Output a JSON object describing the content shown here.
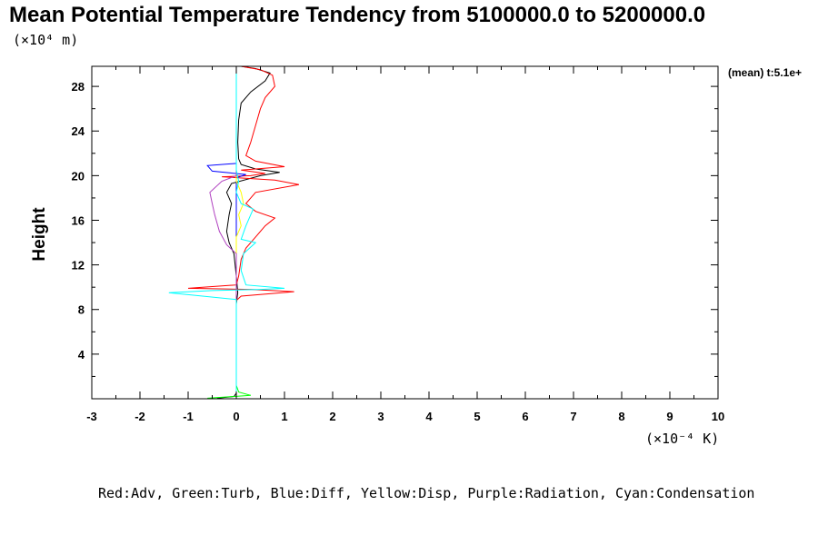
{
  "chart_data": {
    "type": "line",
    "title": "Mean Potential Temperature Tendency from 5100000.0 to 5200000.0",
    "y_unit": "(×10⁴ m)",
    "x_unit": "(×10⁻⁴ K)",
    "ylabel": "Height",
    "annotation": "(mean) t:5.1e+",
    "legend_text": "Red:Adv, Green:Turb, Blue:Diff, Yellow:Disp, Purple:Radiation, Cyan:Condensation",
    "xlim": [
      -3,
      10
    ],
    "ylim": [
      0,
      29.8
    ],
    "x_ticks": [
      -3,
      -2,
      -1,
      0,
      1,
      2,
      3,
      4,
      5,
      6,
      7,
      8,
      9,
      10
    ],
    "x_tick_labels": [
      "-3",
      "-2",
      "-1",
      "0",
      "1",
      "2",
      "3",
      "4",
      "5",
      "6",
      "7",
      "8",
      "9",
      "10"
    ],
    "y_ticks": [
      4,
      8,
      12,
      16,
      20,
      24,
      28
    ],
    "y_tick_labels": [
      "4",
      "8",
      "12",
      "16",
      "20",
      "24",
      "28"
    ],
    "series": [
      {
        "color": "#000000",
        "points": [
          [
            -0.4,
            0.05
          ],
          [
            -0.05,
            0.2
          ],
          [
            0.0,
            0.5
          ],
          [
            0.0,
            8.5
          ],
          [
            0.03,
            9.5
          ],
          [
            0.02,
            10.0
          ],
          [
            0.0,
            11.0
          ],
          [
            -0.05,
            13.0
          ],
          [
            -0.15,
            14.0
          ],
          [
            -0.2,
            15.0
          ],
          [
            -0.15,
            16.5
          ],
          [
            -0.1,
            17.5
          ],
          [
            -0.2,
            18.5
          ],
          [
            -0.1,
            19.3
          ],
          [
            0.5,
            20.0
          ],
          [
            0.9,
            20.3
          ],
          [
            0.4,
            20.6
          ],
          [
            0.1,
            21.0
          ],
          [
            0.05,
            21.5
          ],
          [
            0.03,
            23.0
          ],
          [
            0.05,
            25.0
          ],
          [
            0.1,
            26.5
          ],
          [
            0.3,
            27.5
          ],
          [
            0.6,
            28.5
          ],
          [
            0.7,
            29.2
          ],
          [
            0.4,
            29.6
          ],
          [
            0.1,
            29.8
          ]
        ]
      },
      {
        "color": "#ff0000",
        "points": [
          [
            0.0,
            0.5
          ],
          [
            0.0,
            8.8
          ],
          [
            0.1,
            9.2
          ],
          [
            1.2,
            9.6
          ],
          [
            0.3,
            9.8
          ],
          [
            -1.0,
            9.9
          ],
          [
            0.0,
            10.2
          ],
          [
            0.05,
            11.0
          ],
          [
            0.1,
            12.5
          ],
          [
            0.2,
            13.5
          ],
          [
            0.4,
            14.5
          ],
          [
            0.6,
            15.5
          ],
          [
            0.8,
            16.2
          ],
          [
            0.4,
            16.8
          ],
          [
            0.2,
            17.5
          ],
          [
            0.4,
            18.5
          ],
          [
            1.3,
            19.2
          ],
          [
            0.8,
            19.6
          ],
          [
            -0.3,
            19.9
          ],
          [
            0.3,
            20.0
          ],
          [
            0.6,
            20.2
          ],
          [
            0.1,
            20.5
          ],
          [
            1.0,
            20.8
          ],
          [
            0.4,
            21.3
          ],
          [
            0.2,
            21.8
          ],
          [
            0.3,
            23.0
          ],
          [
            0.4,
            24.5
          ],
          [
            0.5,
            26.0
          ],
          [
            0.6,
            27.0
          ],
          [
            0.8,
            28.0
          ],
          [
            0.75,
            29.0
          ],
          [
            0.5,
            29.5
          ],
          [
            0.1,
            29.8
          ]
        ]
      },
      {
        "color": "#00ff00",
        "points": [
          [
            -0.6,
            0.05
          ],
          [
            0.3,
            0.3
          ],
          [
            0.05,
            0.6
          ],
          [
            0.0,
            1.2
          ],
          [
            0.0,
            29.8
          ]
        ]
      },
      {
        "color": "#0000ff",
        "points": [
          [
            0.0,
            0.5
          ],
          [
            0.0,
            19.8
          ],
          [
            0.2,
            20.1
          ],
          [
            -0.5,
            20.4
          ],
          [
            -0.6,
            20.9
          ],
          [
            0.0,
            21.1
          ],
          [
            0.0,
            29.8
          ]
        ]
      },
      {
        "color": "#ffff00",
        "points": [
          [
            0.0,
            0.5
          ],
          [
            0.0,
            14.5
          ],
          [
            0.1,
            15.5
          ],
          [
            0.05,
            16.5
          ],
          [
            0.15,
            17.5
          ],
          [
            0.1,
            18.5
          ],
          [
            0.0,
            19.5
          ],
          [
            0.0,
            29.8
          ]
        ]
      },
      {
        "color": "#b040c0",
        "points": [
          [
            0.0,
            0.5
          ],
          [
            0.0,
            13.0
          ],
          [
            -0.2,
            13.8
          ],
          [
            -0.35,
            15.0
          ],
          [
            -0.45,
            16.5
          ],
          [
            -0.5,
            17.5
          ],
          [
            -0.55,
            18.5
          ],
          [
            -0.3,
            19.5
          ],
          [
            0.0,
            20.0
          ],
          [
            0.0,
            29.8
          ]
        ]
      },
      {
        "color": "#00ffff",
        "points": [
          [
            0.0,
            0.5
          ],
          [
            0.0,
            8.9
          ],
          [
            -1.4,
            9.5
          ],
          [
            -0.5,
            9.7
          ],
          [
            0.5,
            9.8
          ],
          [
            1.0,
            9.9
          ],
          [
            0.2,
            10.2
          ],
          [
            0.1,
            11.5
          ],
          [
            0.15,
            13.0
          ],
          [
            0.4,
            14.0
          ],
          [
            0.1,
            14.3
          ],
          [
            0.2,
            15.5
          ],
          [
            0.3,
            16.5
          ],
          [
            0.35,
            17.0
          ],
          [
            0.1,
            17.5
          ],
          [
            0.0,
            18.5
          ],
          [
            0.05,
            19.5
          ],
          [
            0.0,
            20.5
          ],
          [
            0.0,
            29.8
          ]
        ]
      }
    ]
  }
}
